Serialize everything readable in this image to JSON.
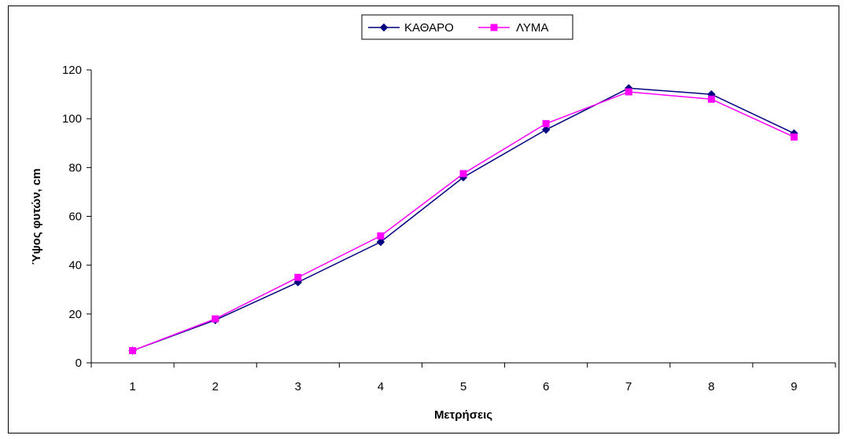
{
  "chart_data": {
    "type": "line",
    "title": "",
    "xlabel": "Μετρήσεις",
    "ylabel": "Ύψος φυτών, cm",
    "categories": [
      "1",
      "2",
      "3",
      "4",
      "5",
      "6",
      "7",
      "8",
      "9"
    ],
    "ylim": [
      0,
      120
    ],
    "yticks": [
      "0",
      "20",
      "40",
      "60",
      "80",
      "100",
      "120"
    ],
    "grid": false,
    "legend_position": "top-center",
    "series": [
      {
        "name": "ΚΑΘΑΡΟ",
        "color": "#000080",
        "marker": "diamond",
        "values": [
          5,
          17.5,
          33,
          49.5,
          76,
          95.5,
          112.5,
          110,
          94
        ]
      },
      {
        "name": "ΛΥΜΑ",
        "color": "#ff00ff",
        "marker": "square",
        "values": [
          5,
          18,
          35,
          52,
          77.5,
          98,
          111,
          108,
          92.5
        ]
      }
    ]
  }
}
